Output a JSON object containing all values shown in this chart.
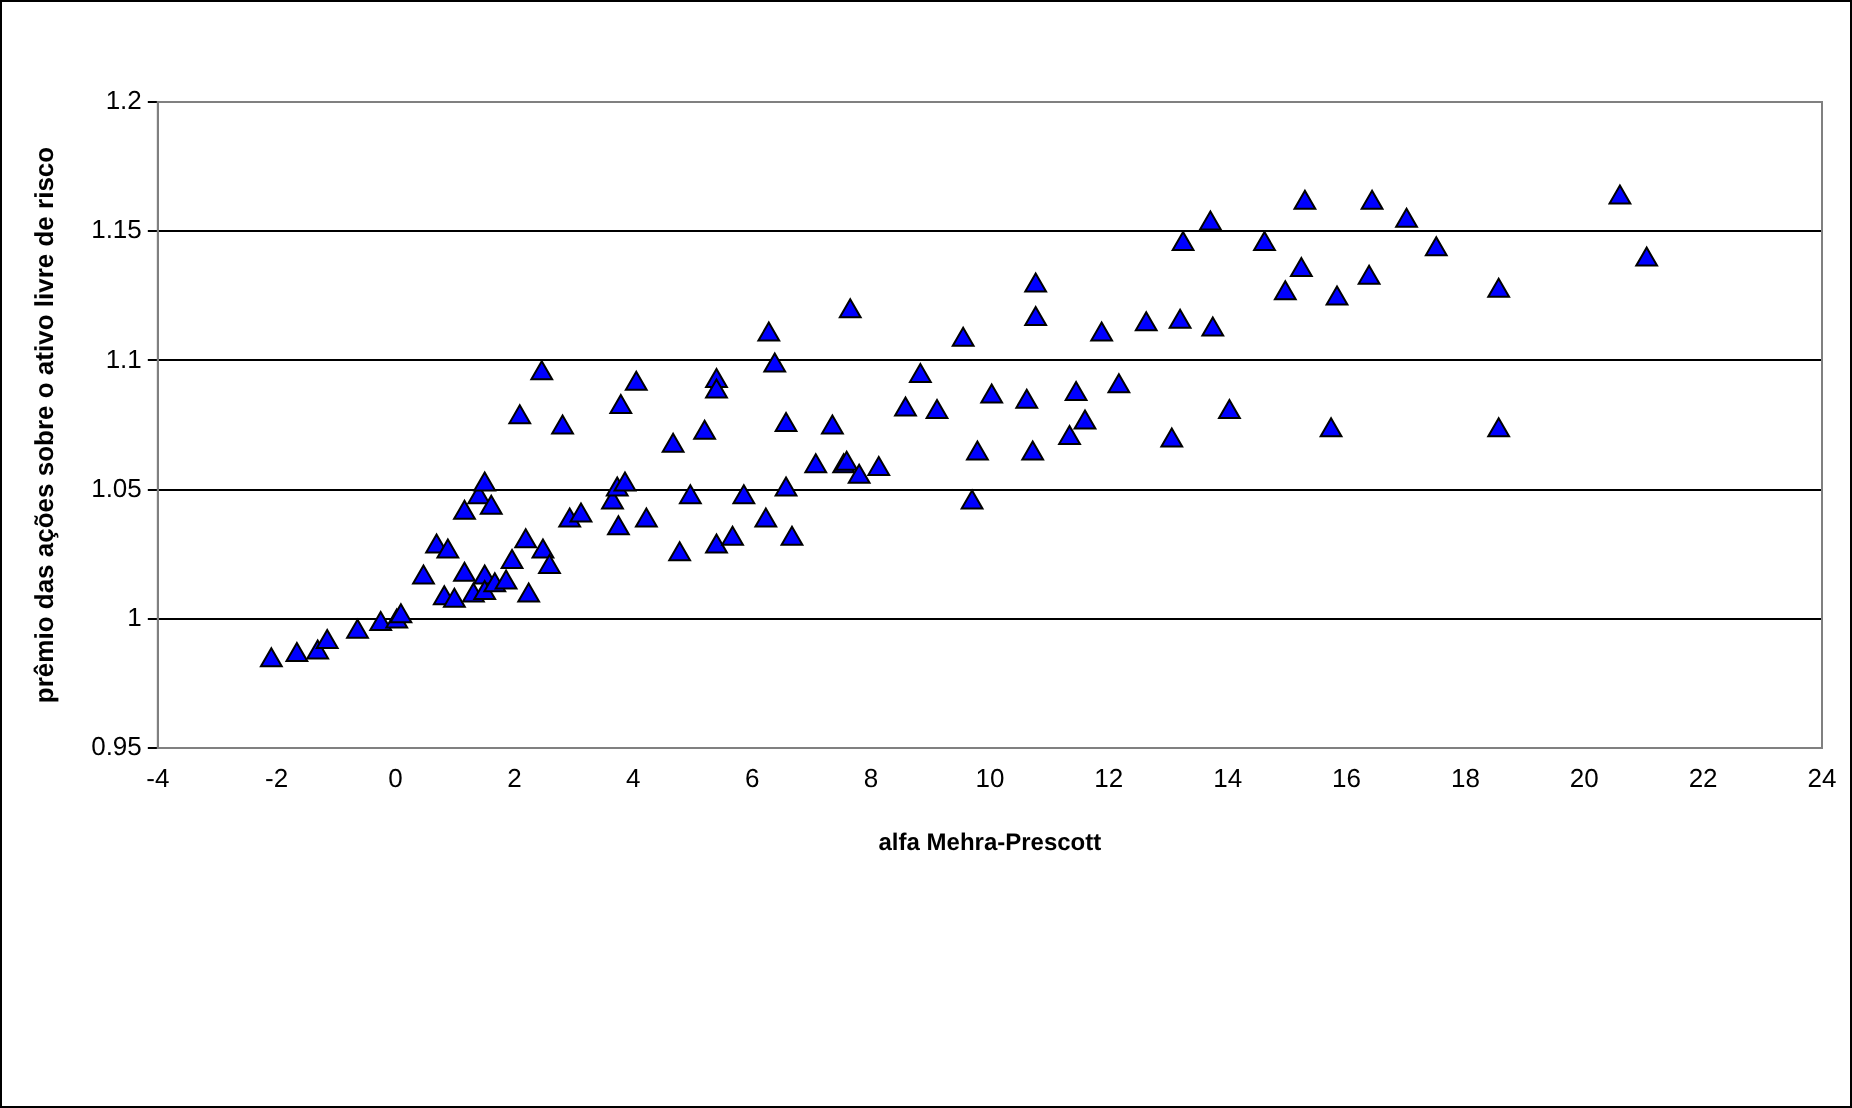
{
  "chart_data": {
    "type": "scatter",
    "xlabel": "alfa Mehra-Prescott",
    "ylabel": "prêmio das ações sobre o ativo livre de risco",
    "xlim": [
      -4,
      24
    ],
    "xticks": [
      -4,
      -2,
      0,
      2,
      4,
      6,
      8,
      10,
      12,
      14,
      16,
      18,
      20,
      22,
      24
    ],
    "ylim": [
      0.95,
      1.2
    ],
    "yticks": [
      0.95,
      1,
      1.05,
      1.1,
      1.15,
      1.2
    ],
    "grid": "y",
    "legend": false,
    "marker": "triangle",
    "series": [
      {
        "color": "#0000ff",
        "x": [
          -2.09,
          -1.66,
          -1.31,
          -1.15,
          -0.64,
          -0.25,
          0.02,
          0.09,
          0.47,
          0.69,
          0.88,
          1.16,
          1.4,
          1.5,
          1.61,
          1.16,
          0.82,
          0.99,
          1.31,
          1.5,
          1.5,
          1.67,
          1.86,
          1.96,
          2.19,
          2.48,
          2.59,
          2.24,
          2.09,
          2.46,
          2.81,
          2.93,
          3.12,
          3.65,
          3.75,
          3.73,
          3.86,
          3.79,
          4.05,
          4.22,
          4.67,
          4.78,
          4.96,
          5.2,
          5.4,
          5.4,
          5.4,
          5.67,
          5.86,
          6.23,
          6.28,
          6.38,
          6.57,
          6.57,
          6.67,
          7.07,
          7.35,
          7.54,
          7.59,
          7.8,
          7.65,
          8.13,
          8.58,
          8.83,
          9.11,
          9.55,
          9.7,
          9.79,
          10.03,
          10.62,
          10.72,
          10.77,
          10.77,
          11.34,
          11.45,
          11.6,
          11.88,
          12.17,
          12.63,
          13.06,
          13.2,
          13.25,
          13.71,
          13.75,
          14.03,
          14.62,
          15.3,
          14.97,
          15.24,
          15.74,
          15.84,
          16.38,
          16.43,
          17.01,
          17.51,
          18.56,
          18.56,
          20.6,
          21.05
        ],
        "values": [
          0.984,
          0.986,
          0.987,
          0.991,
          0.995,
          0.998,
          0.999,
          1.001,
          1.016,
          1.028,
          1.026,
          1.041,
          1.047,
          1.052,
          1.043,
          1.017,
          1.008,
          1.007,
          1.009,
          1.016,
          1.01,
          1.013,
          1.014,
          1.022,
          1.03,
          1.026,
          1.02,
          1.009,
          1.078,
          1.095,
          1.074,
          1.038,
          1.04,
          1.045,
          1.035,
          1.05,
          1.052,
          1.082,
          1.091,
          1.038,
          1.067,
          1.025,
          1.047,
          1.072,
          1.092,
          1.088,
          1.028,
          1.031,
          1.047,
          1.038,
          1.11,
          1.098,
          1.075,
          1.05,
          1.031,
          1.059,
          1.074,
          1.059,
          1.06,
          1.055,
          1.119,
          1.058,
          1.081,
          1.094,
          1.08,
          1.108,
          1.045,
          1.064,
          1.086,
          1.084,
          1.064,
          1.129,
          1.116,
          1.07,
          1.087,
          1.076,
          1.11,
          1.09,
          1.114,
          1.069,
          1.115,
          1.145,
          1.153,
          1.112,
          1.08,
          1.145,
          1.161,
          1.126,
          1.135,
          1.073,
          1.124,
          1.132,
          1.161,
          1.154,
          1.143,
          1.127,
          1.073,
          1.163,
          1.139
        ]
      }
    ]
  }
}
